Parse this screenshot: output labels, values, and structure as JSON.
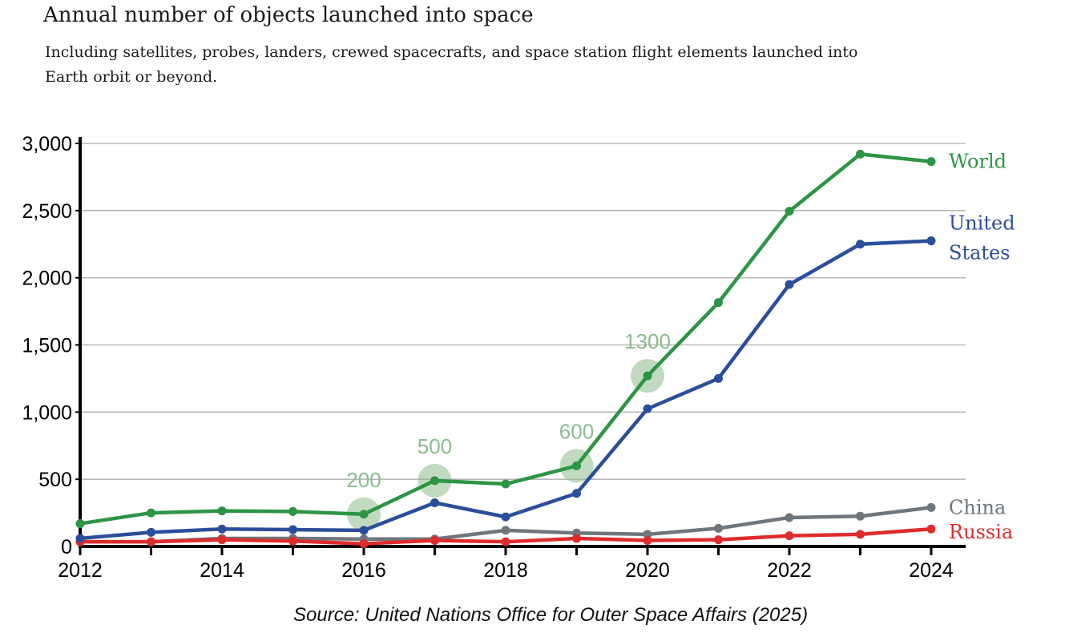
{
  "title": "Annual number of objects launched into space",
  "subtitle": "Including satellites, probes, landers, crewed spacecrafts, and space station flight elements launched into Earth orbit or beyond.",
  "source": "Source: United Nations Office for Outer Space Affairs (2025)",
  "colors": {
    "World": "#2e9445",
    "United States": "#2b4e9a",
    "China": "#6f767c",
    "Russia": "#dd2c2c",
    "annotation": "#8cbc8c",
    "grid": "#b9b9b9",
    "axis": "#000000"
  },
  "chart_data": {
    "type": "line",
    "title": "Annual number of objects launched into space",
    "subtitle": "Including satellites, probes, landers, crewed spacecrafts, and space station flight elements launched into Earth orbit or beyond.",
    "xlabel": "",
    "ylabel": "",
    "x": [
      2012,
      2013,
      2014,
      2015,
      2016,
      2017,
      2018,
      2019,
      2020,
      2021,
      2022,
      2023,
      2024
    ],
    "xlim": [
      2012,
      2024
    ],
    "ylim": [
      0,
      3000
    ],
    "x_ticks": [
      "2012",
      "2014",
      "2016",
      "2018",
      "2020",
      "2022",
      "2024"
    ],
    "y_ticks": [
      {
        "value": 0,
        "label": "0"
      },
      {
        "value": 500,
        "label": "500"
      },
      {
        "value": 1000,
        "label": "1,000"
      },
      {
        "value": 1500,
        "label": "1,500"
      },
      {
        "value": 2000,
        "label": "2,000"
      },
      {
        "value": 2500,
        "label": "2,500"
      },
      {
        "value": 3000,
        "label": "3,000"
      }
    ],
    "grid": true,
    "legend": "inline labels at line ends (right)",
    "series": [
      {
        "name": "China",
        "label_lines": [
          "China"
        ],
        "values": [
          35,
          35,
          60,
          60,
          55,
          55,
          120,
          100,
          90,
          135,
          215,
          225,
          290
        ]
      },
      {
        "name": "Russia",
        "label_lines": [
          "Russia"
        ],
        "values": [
          35,
          35,
          50,
          40,
          20,
          45,
          35,
          60,
          45,
          50,
          80,
          90,
          130
        ]
      },
      {
        "name": "United States",
        "label_lines": [
          "United",
          "States"
        ],
        "values": [
          60,
          105,
          130,
          125,
          120,
          325,
          220,
          395,
          1025,
          1250,
          1950,
          2250,
          2275
        ]
      },
      {
        "name": "World",
        "label_lines": [
          "World"
        ],
        "values": [
          170,
          250,
          265,
          260,
          240,
          490,
          465,
          600,
          1270,
          1815,
          2495,
          2920,
          2865
        ]
      }
    ],
    "annotations": [
      {
        "x": 2016,
        "y": 240,
        "text": "200"
      },
      {
        "x": 2017,
        "y": 490,
        "text": "500"
      },
      {
        "x": 2019,
        "y": 600,
        "text": "600"
      },
      {
        "x": 2020,
        "y": 1270,
        "text": "1300"
      }
    ]
  }
}
